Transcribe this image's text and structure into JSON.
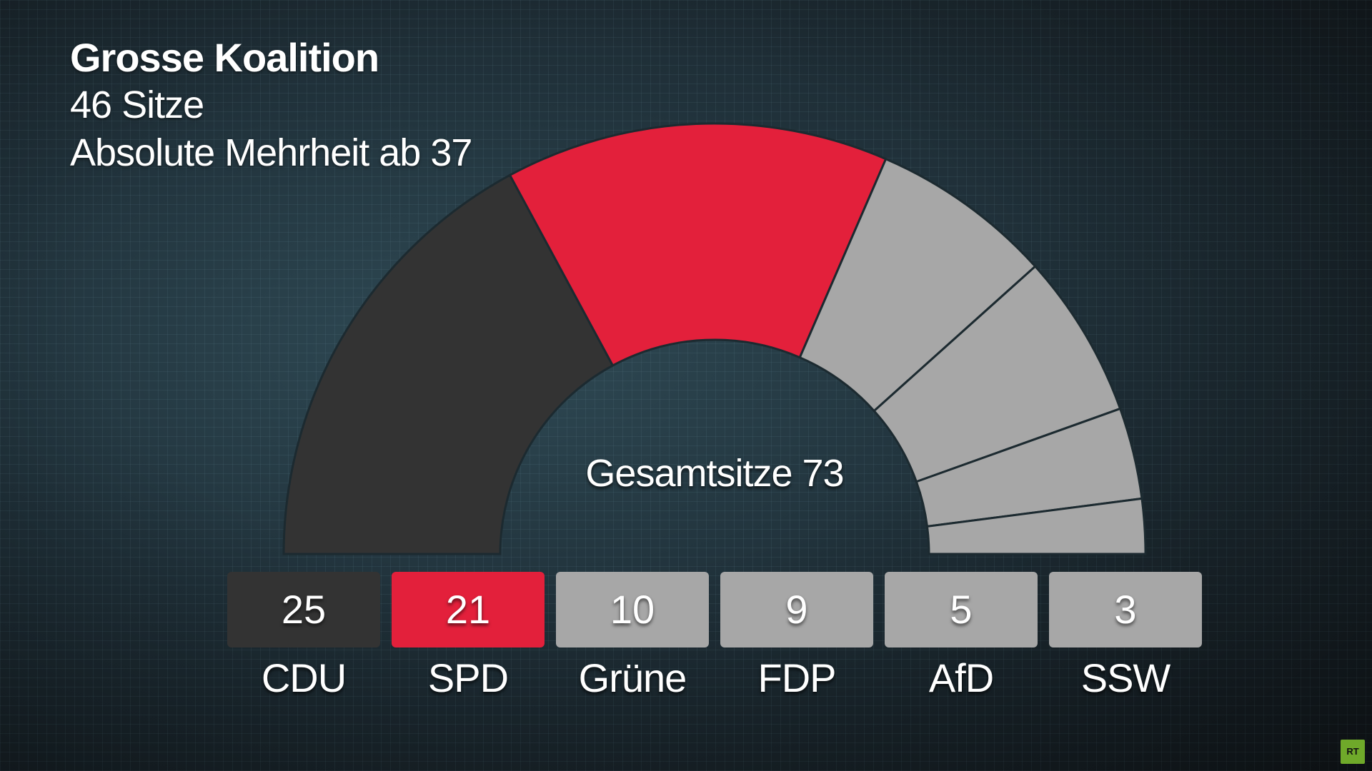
{
  "chart_data": {
    "type": "hemicycle",
    "title": "Grosse Koalition",
    "subtitle_seats": "46 Sitze",
    "subtitle_majority": "Absolute Mehrheit ab 37",
    "center_label": "Gesamtsitze 73",
    "total_seats": 73,
    "majority": 37,
    "coalition_seats": 46,
    "parties": [
      {
        "name": "CDU",
        "seats": 25,
        "seats_label": "25",
        "color": "#333333"
      },
      {
        "name": "SPD",
        "seats": 21,
        "seats_label": "21",
        "color": "#e3203b"
      },
      {
        "name": "Grüne",
        "seats": 10,
        "seats_label": "10",
        "color": "#a7a7a7"
      },
      {
        "name": "FDP",
        "seats": 9,
        "seats_label": "9",
        "color": "#a7a7a7"
      },
      {
        "name": "AfD",
        "seats": 5,
        "seats_label": "5",
        "color": "#a7a7a7"
      },
      {
        "name": "SSW",
        "seats": 3,
        "seats_label": "3",
        "color": "#a7a7a7"
      }
    ]
  },
  "logo": {
    "text": "RT",
    "color": "#6fa92a"
  }
}
